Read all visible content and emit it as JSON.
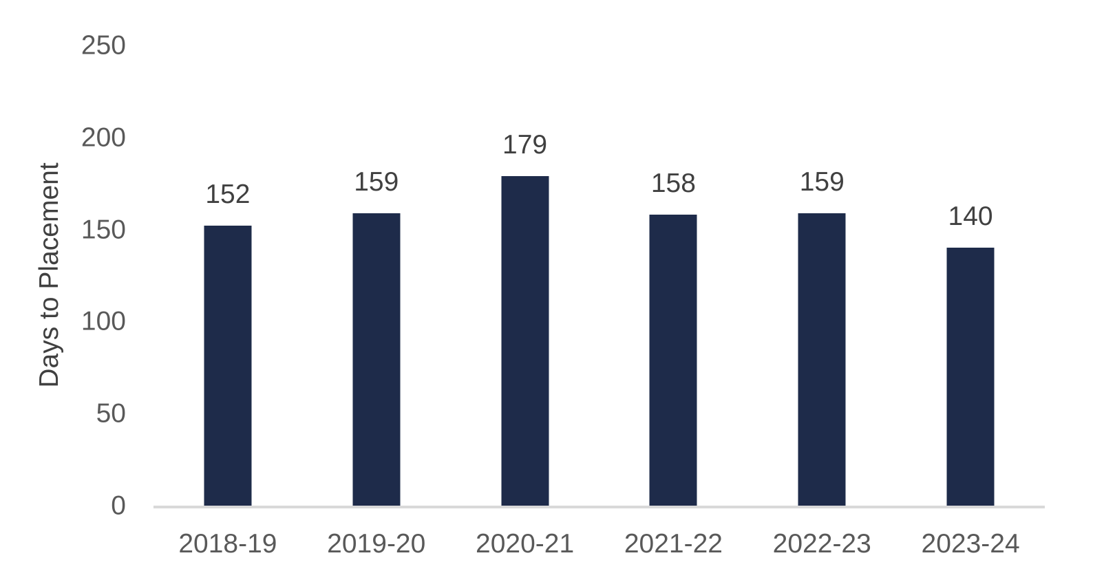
{
  "chart_data": {
    "type": "bar",
    "categories": [
      "2018-19",
      "2019-20",
      "2020-21",
      "2021-22",
      "2022-23",
      "2023-24"
    ],
    "values": [
      152,
      159,
      179,
      158,
      159,
      140
    ],
    "title": "",
    "xlabel": "",
    "ylabel": "Days to Placement",
    "ylim": [
      0,
      250
    ],
    "yticks": [
      0,
      50,
      100,
      150,
      200,
      250
    ],
    "grid": false,
    "legend": "none",
    "data_labels_shown": true,
    "colors": {
      "bar": "#1E2B4A",
      "axis_line": "#D9D9D9",
      "tick_labels": "#595959",
      "data_labels": "#404040",
      "y_title": "#404040",
      "background": "#FFFFFF"
    }
  }
}
